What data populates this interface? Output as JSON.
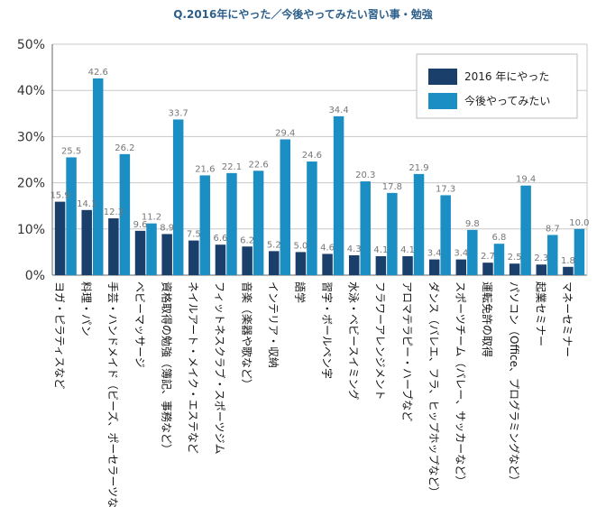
{
  "chart_data": {
    "type": "bar",
    "title": "Q.2016年にやった／今後やってみたい習い事・勉強",
    "xlabel": "",
    "ylabel": "",
    "ylim": [
      0,
      50
    ],
    "yticks": [
      "0%",
      "10%",
      "20%",
      "30%",
      "40%",
      "50%"
    ],
    "grid": true,
    "legend_position": "top-right",
    "categories": [
      "ヨガ・ピラティスなど",
      "料理・パン",
      "手芸・ハンドメイド（ビーズ、ポーセラーツなど）",
      "ベビーマッサージ",
      "資格取得の勉強（簿記、事務など）",
      "ネイルアート・メイク・エステなど",
      "フィットネスクラブ・スポーツジム",
      "音楽（楽器や歌など）",
      "インテリア・収納",
      "語学",
      "習字・ボールペン字",
      "水泳・ベビースイミング",
      "フラワーアレンジメント",
      "アロマテラピー・ハーブなど",
      "ダンス（バレエ、フラ、ヒップホップなど）",
      "スポーツチーム（バレー、サッカーなど）",
      "運転免許の取得",
      "パソコン（Office、プログラミングなど）",
      "起業セミナー",
      "マネーセミナー"
    ],
    "series": [
      {
        "name": "2016 年にやった",
        "color": "#1a3f6b",
        "values": [
          15.9,
          14.1,
          12.3,
          9.6,
          8.9,
          7.5,
          6.6,
          6.2,
          5.2,
          5.0,
          4.6,
          4.3,
          4.1,
          4.1,
          3.4,
          3.4,
          2.7,
          2.5,
          2.3,
          1.8
        ],
        "labels": [
          "15.9",
          "14.1",
          "12.3",
          "9.6",
          "8.9",
          "7.5",
          "6.6",
          "6.2",
          "5.2",
          "5.0",
          "4.6",
          "4.3",
          "4.1",
          "4.1",
          "3.4",
          "3.4",
          "2.7",
          "2.5",
          "2.3",
          "1.8"
        ]
      },
      {
        "name": "今後やってみたい",
        "color": "#1b8fc4",
        "values": [
          25.5,
          42.6,
          26.2,
          11.2,
          33.7,
          21.6,
          22.1,
          22.6,
          29.4,
          24.6,
          34.4,
          20.3,
          17.8,
          21.9,
          17.3,
          9.8,
          6.8,
          19.4,
          8.7,
          10.0
        ],
        "labels": [
          "25.5",
          "42.6",
          "26.2",
          "11.2",
          "33.7",
          "21.6",
          "22.1",
          "22.6",
          "29.4",
          "24.6",
          "34.4",
          "20.3",
          "17.8",
          "21.9",
          "17.3",
          "9.8",
          "6.8",
          "19.4",
          "8.7",
          "10.0"
        ]
      }
    ]
  }
}
